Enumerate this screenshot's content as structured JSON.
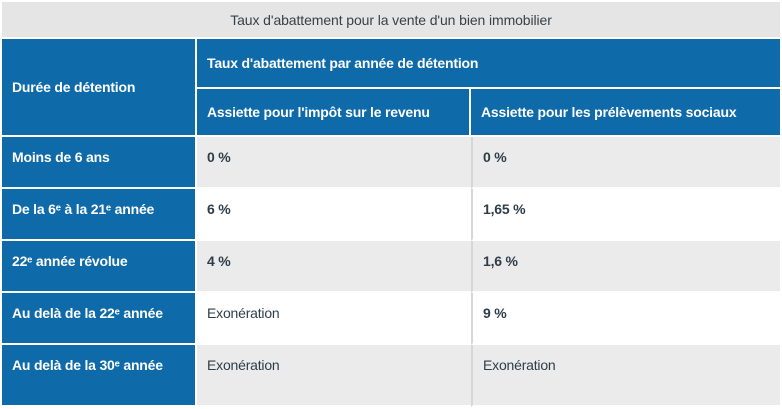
{
  "title": "Taux d'abattement pour la vente d'un bien immobilier",
  "table": {
    "corner_header": "Durée de détention",
    "group_header": "Taux d'abattement par année de détention",
    "col_headers": [
      "Assiette pour l'impôt sur le revenu",
      "Assiette pour les prélèvements sociaux"
    ],
    "rows": [
      {
        "label": "Moins de 6 ans",
        "income_tax": "0 %",
        "social_levies": "0 %"
      },
      {
        "label": "De la 6ᵉ à la 21ᵉ année",
        "income_tax": "6 %",
        "social_levies": "1,65 %"
      },
      {
        "label": "22ᵉ année révolue",
        "income_tax": "4 %",
        "social_levies": "1,6 %"
      },
      {
        "label": "Au delà de la 22ᵉ année",
        "income_tax": "Exonération",
        "social_levies": "9 %"
      },
      {
        "label": "Au delà de la 30ᵉ année",
        "income_tax": "Exonération",
        "social_levies": "Exonération"
      }
    ]
  },
  "colors": {
    "header_blue": "#0e6aa8",
    "title_bar_gray": "#e5e5e5",
    "row_shade_gray": "#ebebeb",
    "value_text": "#2e3d49",
    "divider_gray": "#d6d6d6"
  }
}
